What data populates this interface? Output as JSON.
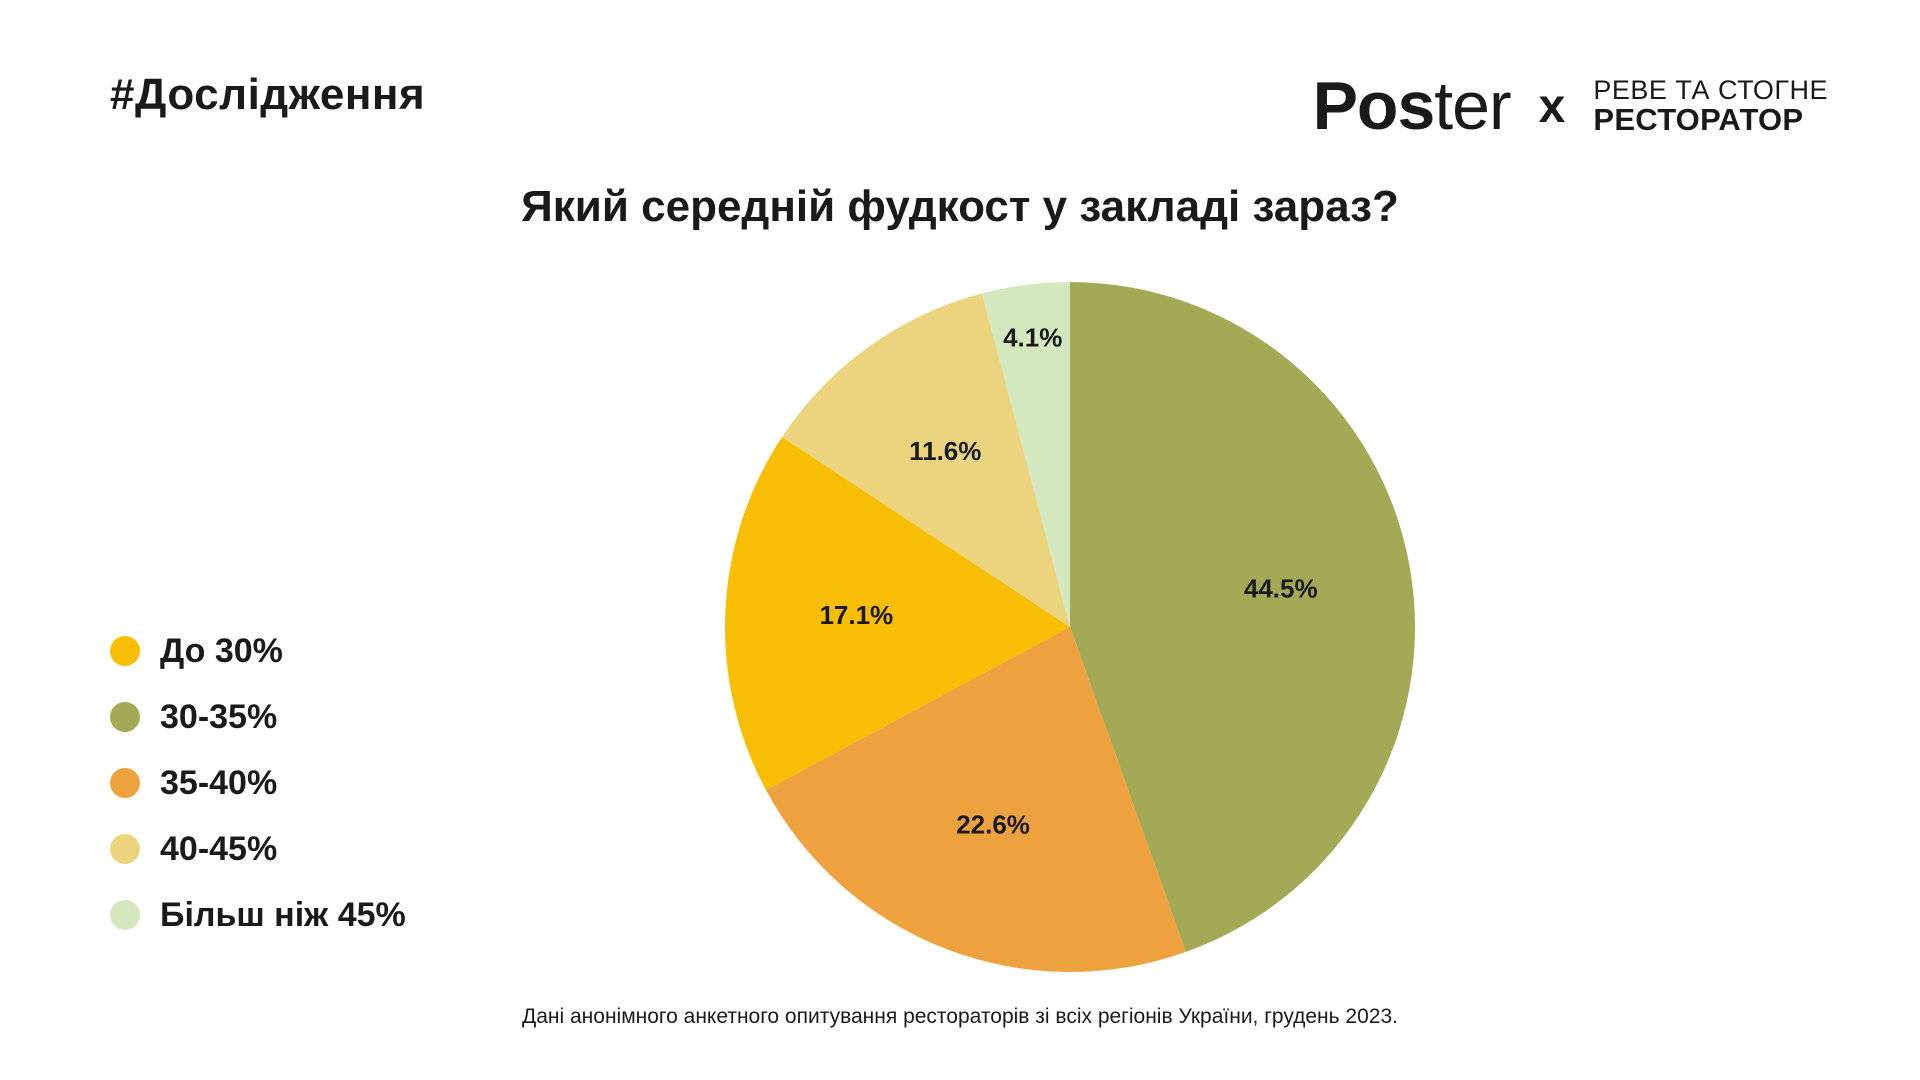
{
  "header": {
    "hashtag": "#Дослідження",
    "logo_pos": "Pos",
    "logo_ter": "ter",
    "cross": "x",
    "partner_line1": "РЕВЕ ТА СТОГНЕ",
    "partner_line2": "РЕСТОРАТОР"
  },
  "footnote": "Дані анонімного анкетного опитування рестораторів зі всіх регіонів України, грудень 2023.",
  "chart_data": {
    "type": "pie",
    "title": "Який середній фудкост у закладі зараз?",
    "legend_position": "left",
    "slices": [
      {
        "label": "До 30%",
        "value": 17.1,
        "display": "17.1%",
        "color": "#F8BD05"
      },
      {
        "label": "30-35%",
        "value": 44.5,
        "display": "44.5%",
        "color": "#A4A955"
      },
      {
        "label": "35-40%",
        "value": 22.6,
        "display": "22.6%",
        "color": "#EDA23F"
      },
      {
        "label": "40-45%",
        "value": 11.6,
        "display": "11.6%",
        "color": "#ECD47F"
      },
      {
        "label": "Більш ніж 45%",
        "value": 4.1,
        "display": "4.1%",
        "color": "#D3E8BE"
      }
    ],
    "draw_order_clockwise_from_top": [
      "30-35%",
      "35-40%",
      "До 30%",
      "40-45%",
      "Більш ніж 45%"
    ]
  }
}
